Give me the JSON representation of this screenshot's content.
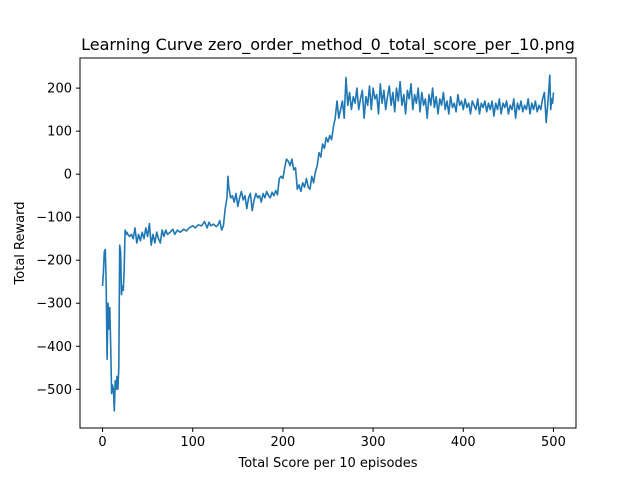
{
  "chart_data": {
    "type": "line",
    "title": "Learning Curve zero_order_method_0_total_score_per_10.png",
    "xlabel": "Total Score per 10 episodes",
    "ylabel": "Total Reward",
    "xlim": [
      -25,
      525
    ],
    "ylim": [
      -590,
      270
    ],
    "x_ticks": [
      0,
      100,
      200,
      300,
      400,
      500
    ],
    "y_ticks": [
      -500,
      -400,
      -300,
      -200,
      -100,
      0,
      100,
      200
    ],
    "grid": false,
    "series": [
      {
        "color": "#1f77b4",
        "points": [
          [
            0,
            -260
          ],
          [
            1,
            -230
          ],
          [
            2,
            -180
          ],
          [
            3,
            -175
          ],
          [
            4,
            -260
          ],
          [
            5,
            -430
          ],
          [
            6,
            -300
          ],
          [
            7,
            -360
          ],
          [
            8,
            -310
          ],
          [
            9,
            -400
          ],
          [
            10,
            -510
          ],
          [
            11,
            -490
          ],
          [
            12,
            -500
          ],
          [
            13,
            -550
          ],
          [
            14,
            -480
          ],
          [
            15,
            -500
          ],
          [
            16,
            -470
          ],
          [
            17,
            -500
          ],
          [
            18,
            -450
          ],
          [
            19,
            -165
          ],
          [
            20,
            -180
          ],
          [
            21,
            -280
          ],
          [
            22,
            -260
          ],
          [
            23,
            -270
          ],
          [
            24,
            -220
          ],
          [
            25,
            -130
          ],
          [
            26,
            -140
          ],
          [
            27,
            -135
          ],
          [
            28,
            -140
          ],
          [
            30,
            -145
          ],
          [
            32,
            -140
          ],
          [
            34,
            -150
          ],
          [
            36,
            -125
          ],
          [
            38,
            -160
          ],
          [
            40,
            -140
          ],
          [
            42,
            -155
          ],
          [
            44,
            -135
          ],
          [
            46,
            -150
          ],
          [
            48,
            -125
          ],
          [
            50,
            -145
          ],
          [
            52,
            -115
          ],
          [
            54,
            -165
          ],
          [
            56,
            -140
          ],
          [
            58,
            -160
          ],
          [
            60,
            -135
          ],
          [
            62,
            -150
          ],
          [
            64,
            -160
          ],
          [
            66,
            -130
          ],
          [
            68,
            -145
          ],
          [
            70,
            -130
          ],
          [
            72,
            -140
          ],
          [
            75,
            -135
          ],
          [
            78,
            -128
          ],
          [
            80,
            -140
          ],
          [
            83,
            -130
          ],
          [
            86,
            -135
          ],
          [
            90,
            -128
          ],
          [
            93,
            -132
          ],
          [
            96,
            -125
          ],
          [
            100,
            -120
          ],
          [
            103,
            -125
          ],
          [
            106,
            -118
          ],
          [
            110,
            -120
          ],
          [
            113,
            -110
          ],
          [
            116,
            -125
          ],
          [
            118,
            -112
          ],
          [
            120,
            -120
          ],
          [
            123,
            -116
          ],
          [
            126,
            -122
          ],
          [
            128,
            -118
          ],
          [
            130,
            -108
          ],
          [
            132,
            -130
          ],
          [
            134,
            -120
          ],
          [
            136,
            -80
          ],
          [
            138,
            -55
          ],
          [
            139,
            -5
          ],
          [
            140,
            -30
          ],
          [
            142,
            -55
          ],
          [
            144,
            -50
          ],
          [
            146,
            -65
          ],
          [
            148,
            -45
          ],
          [
            150,
            -75
          ],
          [
            152,
            -55
          ],
          [
            154,
            -40
          ],
          [
            156,
            -60
          ],
          [
            158,
            -50
          ],
          [
            160,
            -80
          ],
          [
            162,
            -55
          ],
          [
            164,
            -45
          ],
          [
            166,
            -85
          ],
          [
            168,
            -60
          ],
          [
            170,
            -45
          ],
          [
            172,
            -55
          ],
          [
            174,
            -50
          ],
          [
            176,
            -65
          ],
          [
            178,
            -45
          ],
          [
            180,
            -55
          ],
          [
            182,
            -40
          ],
          [
            184,
            -50
          ],
          [
            186,
            -55
          ],
          [
            188,
            -42
          ],
          [
            190,
            -50
          ],
          [
            192,
            -38
          ],
          [
            194,
            -48
          ],
          [
            196,
            -10
          ],
          [
            198,
            -5
          ],
          [
            200,
            -10
          ],
          [
            202,
            15
          ],
          [
            204,
            35
          ],
          [
            206,
            30
          ],
          [
            208,
            20
          ],
          [
            210,
            35
          ],
          [
            212,
            10
          ],
          [
            214,
            15
          ],
          [
            216,
            -35
          ],
          [
            218,
            -25
          ],
          [
            220,
            -40
          ],
          [
            222,
            -20
          ],
          [
            224,
            -30
          ],
          [
            226,
            -10
          ],
          [
            228,
            -30
          ],
          [
            230,
            -35
          ],
          [
            232,
            -5
          ],
          [
            234,
            -20
          ],
          [
            236,
            5
          ],
          [
            238,
            20
          ],
          [
            240,
            50
          ],
          [
            242,
            40
          ],
          [
            244,
            70
          ],
          [
            246,
            60
          ],
          [
            248,
            85
          ],
          [
            250,
            75
          ],
          [
            252,
            90
          ],
          [
            254,
            80
          ],
          [
            256,
            110
          ],
          [
            258,
            130
          ],
          [
            260,
            170
          ],
          [
            262,
            130
          ],
          [
            264,
            150
          ],
          [
            266,
            170
          ],
          [
            268,
            130
          ],
          [
            270,
            225
          ],
          [
            272,
            160
          ],
          [
            274,
            190
          ],
          [
            276,
            150
          ],
          [
            278,
            180
          ],
          [
            280,
            165
          ],
          [
            282,
            200
          ],
          [
            284,
            150
          ],
          [
            286,
            175
          ],
          [
            288,
            195
          ],
          [
            290,
            130
          ],
          [
            292,
            180
          ],
          [
            294,
            160
          ],
          [
            296,
            205
          ],
          [
            298,
            150
          ],
          [
            300,
            200
          ],
          [
            302,
            175
          ],
          [
            304,
            185
          ],
          [
            306,
            140
          ],
          [
            308,
            210
          ],
          [
            310,
            165
          ],
          [
            312,
            195
          ],
          [
            314,
            150
          ],
          [
            316,
            180
          ],
          [
            318,
            205
          ],
          [
            320,
            160
          ],
          [
            322,
            190
          ],
          [
            324,
            145
          ],
          [
            326,
            200
          ],
          [
            328,
            170
          ],
          [
            330,
            215
          ],
          [
            332,
            160
          ],
          [
            334,
            185
          ],
          [
            336,
            140
          ],
          [
            338,
            195
          ],
          [
            340,
            175
          ],
          [
            342,
            210
          ],
          [
            344,
            150
          ],
          [
            346,
            185
          ],
          [
            348,
            165
          ],
          [
            350,
            200
          ],
          [
            352,
            145
          ],
          [
            354,
            190
          ],
          [
            356,
            160
          ],
          [
            358,
            175
          ],
          [
            360,
            130
          ],
          [
            362,
            185
          ],
          [
            364,
            160
          ],
          [
            366,
            200
          ],
          [
            368,
            155
          ],
          [
            370,
            180
          ],
          [
            372,
            140
          ],
          [
            374,
            175
          ],
          [
            376,
            160
          ],
          [
            378,
            190
          ],
          [
            380,
            150
          ],
          [
            382,
            170
          ],
          [
            384,
            140
          ],
          [
            386,
            180
          ],
          [
            388,
            155
          ],
          [
            390,
            165
          ],
          [
            392,
            145
          ],
          [
            394,
            185
          ],
          [
            396,
            160
          ],
          [
            398,
            170
          ],
          [
            400,
            150
          ],
          [
            402,
            175
          ],
          [
            404,
            155
          ],
          [
            406,
            165
          ],
          [
            408,
            140
          ],
          [
            410,
            170
          ],
          [
            412,
            160
          ],
          [
            414,
            150
          ],
          [
            416,
            175
          ],
          [
            418,
            140
          ],
          [
            420,
            165
          ],
          [
            422,
            155
          ],
          [
            424,
            170
          ],
          [
            426,
            145
          ],
          [
            428,
            165
          ],
          [
            430,
            150
          ],
          [
            432,
            170
          ],
          [
            434,
            135
          ],
          [
            436,
            165
          ],
          [
            438,
            150
          ],
          [
            440,
            175
          ],
          [
            442,
            140
          ],
          [
            444,
            165
          ],
          [
            446,
            155
          ],
          [
            448,
            170
          ],
          [
            450,
            140
          ],
          [
            452,
            160
          ],
          [
            454,
            150
          ],
          [
            456,
            175
          ],
          [
            458,
            130
          ],
          [
            460,
            165
          ],
          [
            462,
            150
          ],
          [
            464,
            170
          ],
          [
            466,
            145
          ],
          [
            468,
            160
          ],
          [
            470,
            150
          ],
          [
            472,
            175
          ],
          [
            474,
            140
          ],
          [
            476,
            165
          ],
          [
            478,
            150
          ],
          [
            480,
            170
          ],
          [
            482,
            145
          ],
          [
            484,
            160
          ],
          [
            486,
            150
          ],
          [
            488,
            175
          ],
          [
            490,
            190
          ],
          [
            492,
            120
          ],
          [
            494,
            170
          ],
          [
            496,
            230
          ],
          [
            497,
            150
          ],
          [
            498,
            175
          ],
          [
            499,
            165
          ],
          [
            500,
            190
          ]
        ]
      }
    ]
  }
}
